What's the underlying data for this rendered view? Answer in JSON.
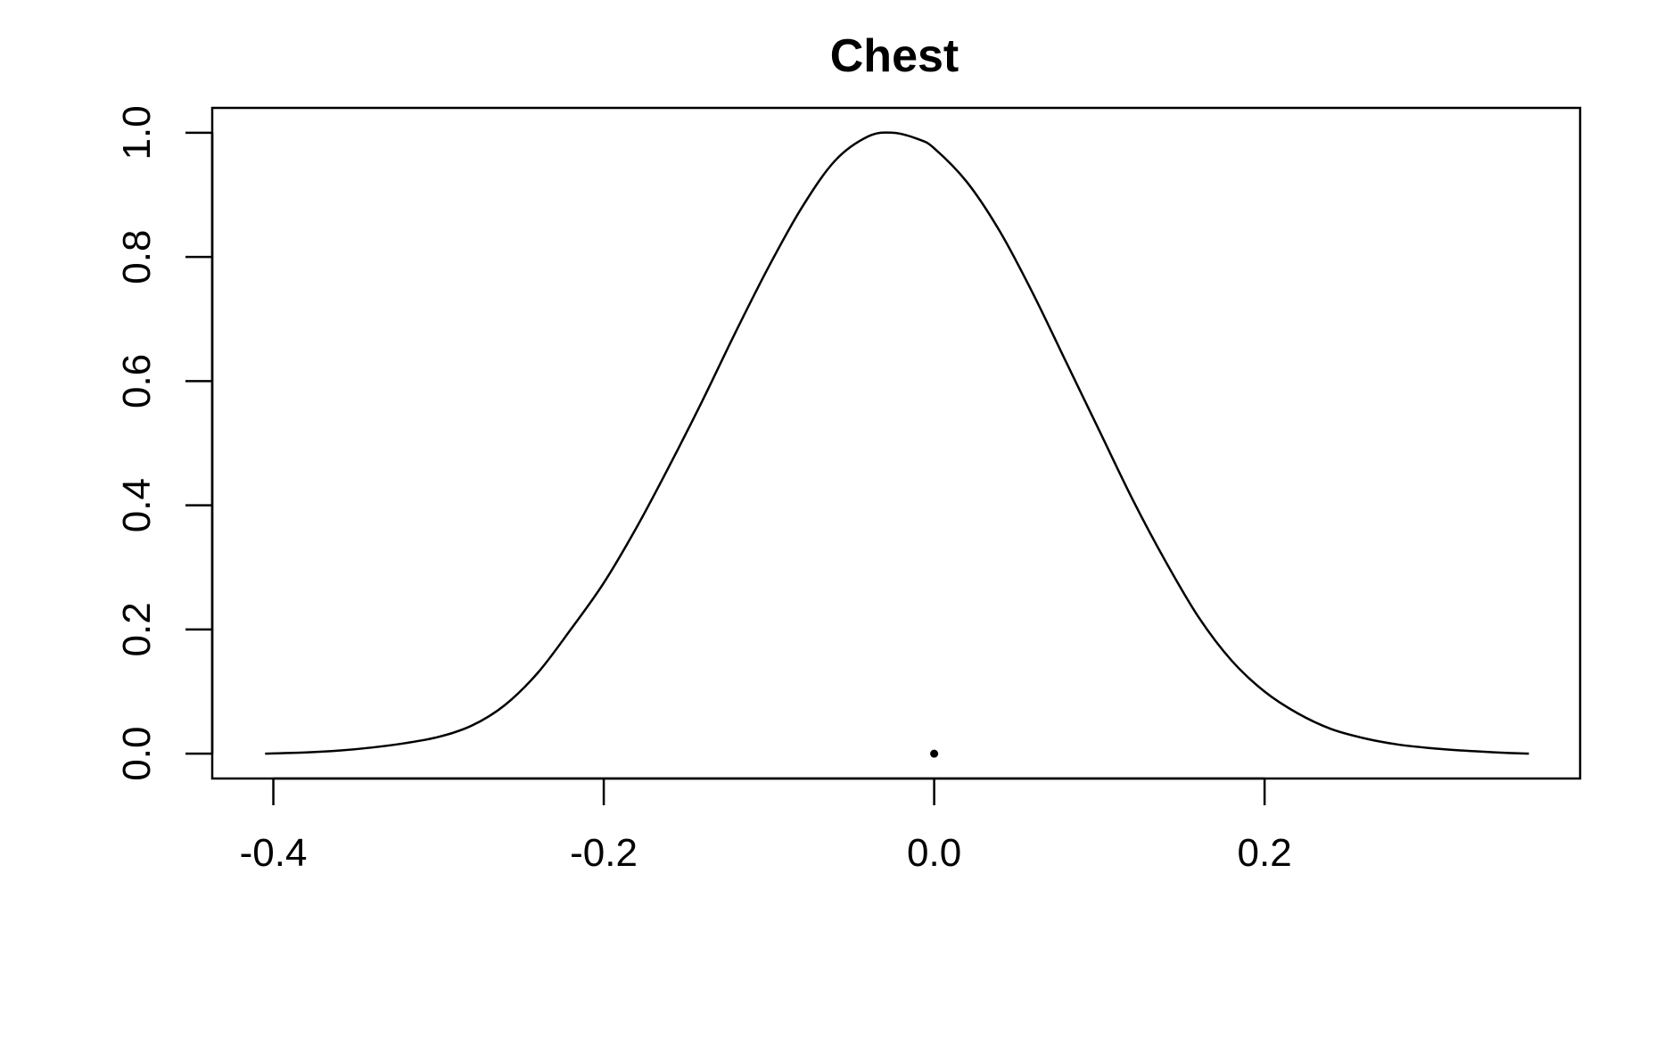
{
  "chart_data": {
    "type": "line",
    "title": "Chest",
    "xlabel": "",
    "ylabel": "",
    "xlim": [
      -0.437,
      0.391
    ],
    "ylim": [
      -0.04,
      1.04
    ],
    "x_ticks": [
      -0.4,
      -0.2,
      0.0,
      0.2
    ],
    "x_tick_labels": [
      "-0.4",
      "-0.2",
      "0.0",
      "0.2"
    ],
    "y_ticks": [
      0.0,
      0.2,
      0.4,
      0.6,
      0.8,
      1.0
    ],
    "y_tick_labels": [
      "0.0",
      "0.2",
      "0.4",
      "0.6",
      "0.8",
      "1.0"
    ],
    "grid": false,
    "series": [
      {
        "x": [
          -0.405,
          -0.38,
          -0.36,
          -0.34,
          -0.32,
          -0.3,
          -0.28,
          -0.26,
          -0.24,
          -0.22,
          -0.2,
          -0.18,
          -0.16,
          -0.14,
          -0.12,
          -0.1,
          -0.08,
          -0.06,
          -0.04,
          -0.025,
          -0.01,
          0.0,
          0.02,
          0.04,
          0.06,
          0.08,
          0.1,
          0.12,
          0.14,
          0.16,
          0.18,
          0.2,
          0.22,
          0.24,
          0.26,
          0.28,
          0.3,
          0.32,
          0.34,
          0.36
        ],
        "y": [
          0.0,
          0.002,
          0.005,
          0.01,
          0.017,
          0.027,
          0.045,
          0.078,
          0.13,
          0.2,
          0.275,
          0.365,
          0.465,
          0.57,
          0.68,
          0.785,
          0.88,
          0.955,
          0.994,
          1.0,
          0.99,
          0.975,
          0.92,
          0.84,
          0.74,
          0.63,
          0.52,
          0.41,
          0.31,
          0.22,
          0.15,
          0.1,
          0.065,
          0.04,
          0.025,
          0.015,
          0.009,
          0.005,
          0.002,
          0.0
        ],
        "color": "#000000"
      },
      {
        "type": "scatter",
        "x": [
          0.0
        ],
        "y": [
          0.0
        ],
        "color": "#000000"
      }
    ]
  }
}
